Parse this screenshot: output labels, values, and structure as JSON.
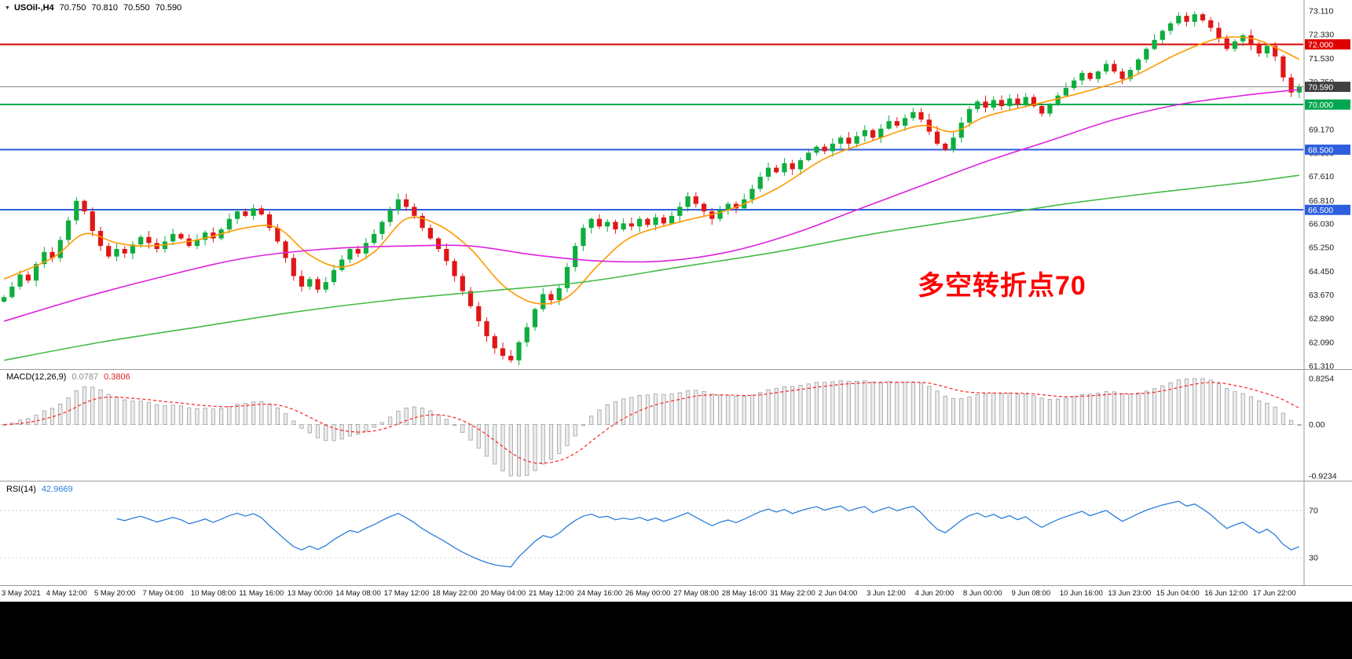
{
  "header": {
    "symbol_tf": "USOil-,H4",
    "open": "70.750",
    "high": "70.810",
    "low": "70.550",
    "close": "70.590"
  },
  "colors": {
    "candle_up": "#0ead3e",
    "candle_down": "#e01616",
    "ma_fast": "#ff9900",
    "ma_mid": "#dd22dd",
    "ma_slow": "#44bb44",
    "hline_red": "#e00000",
    "hline_green": "#00a74f",
    "hline_blue": "#2d5ede",
    "current_price_line": "#8c8c8c",
    "macd_hist_fill": "#ececec",
    "macd_hist_stroke": "#9a9a9a",
    "macd_signal": "#ff2020",
    "rsi_line": "#2a7fdd",
    "annotation": "#ff0000",
    "axis_text": "#1a1a1a",
    "panel_border": "#9a9a9a",
    "time_text": "#111111",
    "bottom_bar": "#000000"
  },
  "chart_data": {
    "type": "candlestick+indicators",
    "symbol": "USOil-",
    "timeframe": "H4",
    "ohlc_display": {
      "open": "70.750",
      "high": "70.810",
      "low": "70.550",
      "close": "70.590"
    },
    "price_range": [
      61.31,
      73.11
    ],
    "price_axis_labels": [
      "73.110",
      "72.330",
      "71.530",
      "70.750",
      "69.170",
      "68.390",
      "67.610",
      "66.810",
      "66.030",
      "65.250",
      "64.450",
      "63.670",
      "62.890",
      "62.090",
      "61.310"
    ],
    "price_badges": [
      {
        "price": 72.0,
        "label": "72.000",
        "bg": "#e00000"
      },
      {
        "price": 70.59,
        "label": "70.590",
        "bg": "#404040"
      },
      {
        "price": 70.0,
        "label": "70.000",
        "bg": "#00a74f"
      },
      {
        "price": 68.5,
        "label": "68.500",
        "bg": "#2d5ede"
      },
      {
        "price": 66.5,
        "label": "66.500",
        "bg": "#2d5ede"
      }
    ],
    "hlines": [
      {
        "price": 72.0,
        "color": "#e00000",
        "width": 2
      },
      {
        "price": 70.0,
        "color": "#00a74f",
        "width": 2
      },
      {
        "price": 68.5,
        "color": "#2d5ede",
        "width": 2
      },
      {
        "price": 66.5,
        "color": "#2d5ede",
        "width": 2
      }
    ],
    "current_price": {
      "value": 70.59,
      "label": "70.590"
    },
    "candles_close": [
      63.6,
      63.95,
      64.35,
      64.15,
      64.7,
      65.1,
      64.9,
      65.5,
      66.15,
      66.8,
      66.45,
      65.8,
      65.3,
      64.95,
      65.2,
      65.05,
      65.35,
      65.6,
      65.4,
      65.2,
      65.45,
      65.7,
      65.55,
      65.3,
      65.5,
      65.75,
      65.55,
      65.85,
      66.2,
      66.45,
      66.3,
      66.55,
      66.35,
      65.9,
      65.45,
      64.9,
      64.3,
      63.95,
      64.2,
      63.85,
      64.1,
      64.5,
      64.85,
      65.2,
      65.05,
      65.4,
      65.7,
      66.1,
      66.5,
      66.85,
      66.6,
      66.3,
      65.9,
      65.55,
      65.2,
      64.8,
      64.3,
      63.8,
      63.3,
      62.8,
      62.3,
      61.9,
      61.65,
      61.5,
      62.1,
      62.6,
      63.2,
      63.7,
      63.5,
      63.9,
      64.6,
      65.3,
      65.9,
      66.2,
      65.95,
      66.1,
      65.85,
      66.05,
      65.95,
      66.2,
      66.0,
      66.25,
      66.05,
      66.3,
      66.6,
      66.95,
      66.7,
      66.45,
      66.2,
      66.5,
      66.7,
      66.55,
      66.85,
      67.2,
      67.6,
      67.9,
      67.75,
      68.05,
      67.85,
      68.15,
      68.4,
      68.6,
      68.45,
      68.7,
      68.9,
      68.7,
      68.95,
      69.15,
      68.9,
      69.2,
      69.45,
      69.3,
      69.55,
      69.75,
      69.5,
      69.1,
      68.7,
      68.5,
      68.9,
      69.4,
      69.85,
      70.1,
      69.9,
      70.15,
      69.95,
      70.2,
      70.0,
      70.25,
      69.95,
      69.7,
      70.0,
      70.3,
      70.55,
      70.8,
      71.05,
      70.85,
      71.1,
      71.35,
      71.1,
      70.85,
      71.15,
      71.5,
      71.85,
      72.15,
      72.45,
      72.7,
      72.95,
      72.75,
      73.0,
      72.8,
      72.55,
      72.2,
      71.85,
      72.1,
      72.3,
      72.0,
      71.7,
      71.95,
      71.6,
      70.9,
      70.4,
      70.59
    ],
    "ma_lines": [
      {
        "name": "ma-fast-orange",
        "color": "#ff9900",
        "anchors": [
          [
            0,
            64.2
          ],
          [
            6,
            64.9
          ],
          [
            10,
            65.7
          ],
          [
            14,
            65.4
          ],
          [
            18,
            65.3
          ],
          [
            24,
            65.5
          ],
          [
            30,
            65.9
          ],
          [
            34,
            65.9
          ],
          [
            38,
            65.0
          ],
          [
            42,
            64.6
          ],
          [
            46,
            65.1
          ],
          [
            50,
            66.2
          ],
          [
            54,
            66.0
          ],
          [
            58,
            65.2
          ],
          [
            62,
            64.0
          ],
          [
            66,
            63.4
          ],
          [
            70,
            63.6
          ],
          [
            74,
            64.7
          ],
          [
            78,
            65.6
          ],
          [
            84,
            66.1
          ],
          [
            90,
            66.5
          ],
          [
            96,
            67.2
          ],
          [
            102,
            68.2
          ],
          [
            108,
            68.8
          ],
          [
            114,
            69.3
          ],
          [
            118,
            69.1
          ],
          [
            122,
            69.6
          ],
          [
            128,
            70.0
          ],
          [
            134,
            70.4
          ],
          [
            140,
            70.9
          ],
          [
            146,
            71.7
          ],
          [
            151,
            72.2
          ],
          [
            155,
            72.2
          ],
          [
            158,
            71.9
          ],
          [
            161,
            71.5
          ]
        ]
      },
      {
        "name": "ma-mid-magenta",
        "color": "#dd22dd",
        "anchors": [
          [
            0,
            62.8
          ],
          [
            10,
            63.6
          ],
          [
            20,
            64.3
          ],
          [
            30,
            64.9
          ],
          [
            40,
            65.2
          ],
          [
            50,
            65.3
          ],
          [
            58,
            65.3
          ],
          [
            66,
            65.0
          ],
          [
            74,
            64.8
          ],
          [
            82,
            64.8
          ],
          [
            90,
            65.1
          ],
          [
            98,
            65.7
          ],
          [
            106,
            66.5
          ],
          [
            114,
            67.3
          ],
          [
            122,
            68.1
          ],
          [
            130,
            68.8
          ],
          [
            138,
            69.5
          ],
          [
            146,
            70.0
          ],
          [
            154,
            70.3
          ],
          [
            161,
            70.5
          ]
        ]
      },
      {
        "name": "ma-slow-green",
        "color": "#44bb44",
        "anchors": [
          [
            0,
            61.5
          ],
          [
            12,
            62.1
          ],
          [
            24,
            62.6
          ],
          [
            36,
            63.1
          ],
          [
            48,
            63.5
          ],
          [
            60,
            63.8
          ],
          [
            72,
            64.1
          ],
          [
            84,
            64.6
          ],
          [
            96,
            65.1
          ],
          [
            108,
            65.7
          ],
          [
            120,
            66.2
          ],
          [
            132,
            66.7
          ],
          [
            144,
            67.1
          ],
          [
            154,
            67.4
          ],
          [
            161,
            67.65
          ]
        ]
      }
    ],
    "time_labels": [
      "3 May 2021",
      "4 May 12:00",
      "5 May 20:00",
      "7 May 04:00",
      "10 May 08:00",
      "11 May 16:00",
      "13 May 00:00",
      "14 May 08:00",
      "17 May 12:00",
      "18 May 22:00",
      "20 May 04:00",
      "21 May 12:00",
      "24 May 16:00",
      "26 May 00:00",
      "27 May 08:00",
      "28 May 16:00",
      "31 May 22:00",
      "2 Jun 04:00",
      "3 Jun 12:00",
      "4 Jun 20:00",
      "8 Jun 00:00",
      "9 Jun 08:00",
      "10 Jun 16:00",
      "13 Jun 23:00",
      "15 Jun 04:00",
      "16 Jun 12:00",
      "17 Jun 22:00"
    ],
    "label_every": 6,
    "annotation": {
      "text": "多空转折点70",
      "color": "#ff0000"
    },
    "macd": {
      "label": "MACD(12,26,9)",
      "value1": "0.0787",
      "value2": "0.3806",
      "params": [
        12,
        26,
        9
      ],
      "axis": [
        "0.8254",
        "0.00",
        "-0.9234"
      ],
      "range": [
        -0.9234,
        0.8254
      ]
    },
    "rsi": {
      "label": "RSI(14)",
      "value": "42.9669",
      "period": 14,
      "axis": [
        "70",
        "30"
      ],
      "levels": [
        70,
        30
      ],
      "range": [
        10,
        90
      ]
    }
  }
}
